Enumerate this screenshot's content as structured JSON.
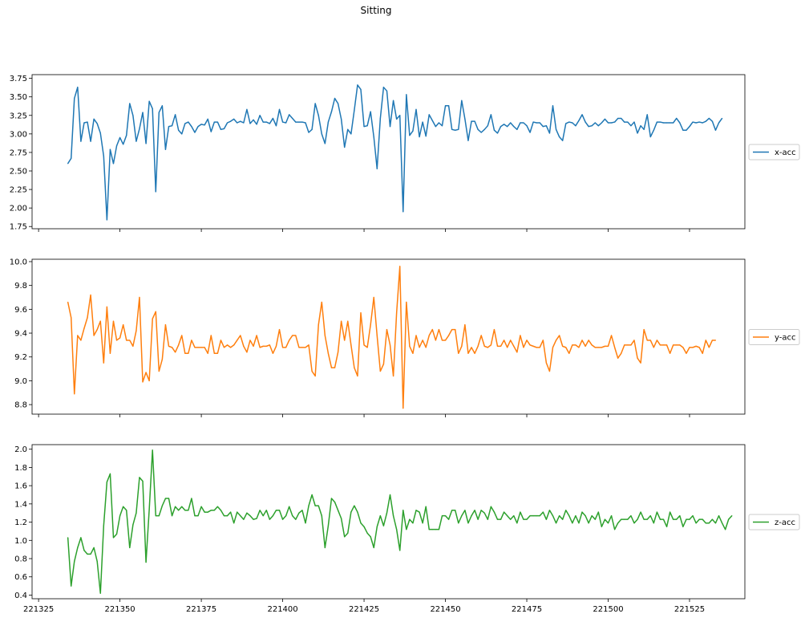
{
  "title": "Sitting",
  "chart_data": [
    {
      "type": "line",
      "title": "",
      "xlabel": "",
      "ylabel": "",
      "series": [
        {
          "name": "x-acc",
          "color": "#1f77b4",
          "x_start": 221334,
          "x_step": 1,
          "values": [
            2.6,
            2.67,
            3.48,
            3.63,
            2.9,
            3.15,
            3.16,
            2.9,
            3.2,
            3.14,
            3.01,
            2.7,
            1.84,
            2.79,
            2.6,
            2.84,
            2.95,
            2.86,
            2.98,
            3.41,
            3.25,
            2.9,
            3.07,
            3.29,
            2.87,
            3.44,
            3.34,
            2.22,
            3.29,
            3.38,
            2.79,
            3.1,
            3.11,
            3.26,
            3.05,
            3.0,
            3.14,
            3.16,
            3.1,
            3.02,
            3.1,
            3.13,
            3.12,
            3.2,
            3.03,
            3.16,
            3.16,
            3.06,
            3.07,
            3.15,
            3.17,
            3.2,
            3.15,
            3.17,
            3.15,
            3.33,
            3.14,
            3.19,
            3.13,
            3.25,
            3.16,
            3.16,
            3.14,
            3.21,
            3.11,
            3.33,
            3.16,
            3.15,
            3.26,
            3.21,
            3.16,
            3.16,
            3.16,
            3.15,
            3.02,
            3.06,
            3.41,
            3.25,
            3.0,
            2.87,
            3.16,
            3.3,
            3.48,
            3.41,
            3.2,
            2.82,
            3.06,
            3.0,
            3.32,
            3.66,
            3.6,
            3.1,
            3.11,
            3.3,
            2.96,
            2.53,
            3.21,
            3.63,
            3.58,
            3.1,
            3.45,
            3.2,
            3.25,
            1.95,
            3.53,
            2.98,
            3.04,
            3.33,
            2.96,
            3.16,
            2.97,
            3.26,
            3.18,
            3.1,
            3.15,
            3.11,
            3.38,
            3.38,
            3.06,
            3.05,
            3.06,
            3.45,
            3.2,
            2.91,
            3.17,
            3.17,
            3.06,
            3.02,
            3.06,
            3.11,
            3.26,
            3.05,
            3.01,
            3.1,
            3.13,
            3.1,
            3.15,
            3.1,
            3.06,
            3.15,
            3.15,
            3.11,
            3.02,
            3.16,
            3.15,
            3.15,
            3.1,
            3.11,
            3.01,
            3.38,
            3.06,
            2.96,
            2.91,
            3.14,
            3.16,
            3.15,
            3.11,
            3.18,
            3.26,
            3.16,
            3.1,
            3.11,
            3.15,
            3.11,
            3.15,
            3.2,
            3.15,
            3.15,
            3.16,
            3.21,
            3.21,
            3.16,
            3.16,
            3.11,
            3.16,
            3.01,
            3.11,
            3.06,
            3.26,
            2.96,
            3.05,
            3.16,
            3.16,
            3.15,
            3.15,
            3.15,
            3.15,
            3.21,
            3.15,
            3.05,
            3.05,
            3.1,
            3.16,
            3.15,
            3.16,
            3.15,
            3.17,
            3.21,
            3.17,
            3.05,
            3.15,
            3.21
          ]
        }
      ],
      "ylim": [
        1.72,
        3.8
      ],
      "yticks": [
        1.75,
        2.0,
        2.25,
        2.5,
        2.75,
        3.0,
        3.25,
        3.5,
        3.75
      ],
      "ytick_labels": [
        "1.75",
        "2.00",
        "2.25",
        "2.50",
        "2.75",
        "3.00",
        "3.25",
        "3.50",
        "3.75"
      ],
      "legend": "right"
    },
    {
      "type": "line",
      "title": "",
      "xlabel": "",
      "ylabel": "",
      "series": [
        {
          "name": "y-acc",
          "color": "#ff7f0e",
          "x_start": 221334,
          "x_step": 1,
          "values": [
            9.66,
            9.53,
            8.89,
            9.38,
            9.34,
            9.44,
            9.53,
            9.72,
            9.38,
            9.43,
            9.5,
            9.15,
            9.62,
            9.23,
            9.5,
            9.34,
            9.36,
            9.47,
            9.34,
            9.34,
            9.29,
            9.42,
            9.7,
            8.99,
            9.07,
            9.0,
            9.52,
            9.58,
            9.08,
            9.18,
            9.47,
            9.29,
            9.28,
            9.24,
            9.3,
            9.38,
            9.23,
            9.23,
            9.34,
            9.28,
            9.28,
            9.28,
            9.28,
            9.23,
            9.38,
            9.23,
            9.23,
            9.34,
            9.28,
            9.3,
            9.28,
            9.3,
            9.34,
            9.38,
            9.29,
            9.24,
            9.34,
            9.29,
            9.38,
            9.28,
            9.29,
            9.29,
            9.3,
            9.23,
            9.29,
            9.43,
            9.28,
            9.28,
            9.34,
            9.38,
            9.38,
            9.28,
            9.28,
            9.28,
            9.3,
            9.08,
            9.04,
            9.47,
            9.66,
            9.38,
            9.23,
            9.11,
            9.11,
            9.24,
            9.5,
            9.34,
            9.5,
            9.3,
            9.11,
            9.04,
            9.57,
            9.3,
            9.28,
            9.47,
            9.7,
            9.38,
            9.08,
            9.14,
            9.43,
            9.3,
            9.04,
            9.57,
            9.96,
            8.77,
            9.66,
            9.29,
            9.23,
            9.38,
            9.28,
            9.34,
            9.28,
            9.38,
            9.43,
            9.34,
            9.43,
            9.34,
            9.34,
            9.38,
            9.43,
            9.43,
            9.23,
            9.29,
            9.47,
            9.23,
            9.28,
            9.23,
            9.29,
            9.38,
            9.29,
            9.28,
            9.3,
            9.43,
            9.29,
            9.29,
            9.34,
            9.28,
            9.34,
            9.29,
            9.24,
            9.38,
            9.28,
            9.34,
            9.3,
            9.29,
            9.28,
            9.28,
            9.34,
            9.15,
            9.08,
            9.28,
            9.34,
            9.38,
            9.29,
            9.28,
            9.23,
            9.3,
            9.3,
            9.28,
            9.34,
            9.29,
            9.34,
            9.3,
            9.28,
            9.28,
            9.28,
            9.29,
            9.29,
            9.38,
            9.28,
            9.19,
            9.23,
            9.3,
            9.3,
            9.3,
            9.34,
            9.19,
            9.15,
            9.43,
            9.34,
            9.34,
            9.28,
            9.34,
            9.3,
            9.3,
            9.3,
            9.23,
            9.3,
            9.3,
            9.3,
            9.28,
            9.23,
            9.28,
            9.28,
            9.29,
            9.28,
            9.23,
            9.34,
            9.28,
            9.34,
            9.34
          ]
        }
      ],
      "ylim": [
        8.72,
        10.02
      ],
      "yticks": [
        8.8,
        9.0,
        9.2,
        9.4,
        9.6,
        9.8,
        10.0
      ],
      "ytick_labels": [
        "8.8",
        "9.0",
        "9.2",
        "9.4",
        "9.6",
        "9.8",
        "10.0"
      ],
      "legend": "right"
    },
    {
      "type": "line",
      "title": "",
      "xlabel": "",
      "ylabel": "",
      "series": [
        {
          "name": "z-acc",
          "color": "#2ca02c",
          "x_start": 221334,
          "x_step": 1,
          "values": [
            1.03,
            0.5,
            0.77,
            0.92,
            1.03,
            0.89,
            0.85,
            0.85,
            0.92,
            0.77,
            0.42,
            1.16,
            1.64,
            1.73,
            1.03,
            1.07,
            1.27,
            1.37,
            1.33,
            0.92,
            1.17,
            1.3,
            1.69,
            1.65,
            0.76,
            1.34,
            1.99,
            1.27,
            1.27,
            1.38,
            1.46,
            1.46,
            1.27,
            1.37,
            1.33,
            1.37,
            1.33,
            1.33,
            1.46,
            1.27,
            1.27,
            1.37,
            1.31,
            1.31,
            1.33,
            1.33,
            1.37,
            1.33,
            1.27,
            1.27,
            1.31,
            1.19,
            1.31,
            1.27,
            1.23,
            1.3,
            1.27,
            1.23,
            1.24,
            1.33,
            1.27,
            1.33,
            1.23,
            1.27,
            1.33,
            1.33,
            1.23,
            1.27,
            1.37,
            1.27,
            1.23,
            1.3,
            1.33,
            1.19,
            1.38,
            1.5,
            1.38,
            1.38,
            1.27,
            0.92,
            1.16,
            1.46,
            1.42,
            1.33,
            1.24,
            1.04,
            1.08,
            1.31,
            1.38,
            1.31,
            1.19,
            1.15,
            1.08,
            1.04,
            0.92,
            1.15,
            1.27,
            1.16,
            1.3,
            1.5,
            1.27,
            1.12,
            0.89,
            1.33,
            1.12,
            1.23,
            1.19,
            1.33,
            1.31,
            1.19,
            1.37,
            1.12,
            1.12,
            1.12,
            1.12,
            1.27,
            1.27,
            1.23,
            1.33,
            1.33,
            1.19,
            1.27,
            1.33,
            1.19,
            1.27,
            1.33,
            1.23,
            1.33,
            1.3,
            1.23,
            1.37,
            1.31,
            1.23,
            1.23,
            1.31,
            1.27,
            1.23,
            1.27,
            1.19,
            1.31,
            1.23,
            1.23,
            1.27,
            1.27,
            1.27,
            1.27,
            1.31,
            1.23,
            1.33,
            1.27,
            1.19,
            1.27,
            1.23,
            1.33,
            1.27,
            1.19,
            1.27,
            1.19,
            1.31,
            1.27,
            1.19,
            1.27,
            1.23,
            1.31,
            1.15,
            1.23,
            1.19,
            1.27,
            1.12,
            1.19,
            1.23,
            1.23,
            1.23,
            1.27,
            1.19,
            1.23,
            1.31,
            1.23,
            1.23,
            1.27,
            1.19,
            1.31,
            1.23,
            1.23,
            1.15,
            1.31,
            1.23,
            1.23,
            1.27,
            1.15,
            1.23,
            1.23,
            1.27,
            1.19,
            1.23,
            1.23,
            1.19,
            1.19,
            1.23,
            1.19,
            1.27,
            1.19,
            1.12,
            1.23,
            1.27
          ]
        }
      ],
      "ylim": [
        0.36,
        2.05
      ],
      "yticks": [
        0.4,
        0.6,
        0.8,
        1.0,
        1.2,
        1.4,
        1.6,
        1.8,
        2.0
      ],
      "ytick_labels": [
        "0.4",
        "0.6",
        "0.8",
        "1.0",
        "1.2",
        "1.4",
        "1.6",
        "1.8",
        "2.0"
      ],
      "legend": "right"
    }
  ],
  "shared_x": {
    "xlim": [
      221323,
      221542
    ],
    "xticks": [
      221325,
      221350,
      221375,
      221400,
      221425,
      221450,
      221475,
      221500,
      221525
    ],
    "xtick_labels": [
      "221325",
      "221350",
      "221375",
      "221400",
      "221425",
      "221450",
      "221475",
      "221500",
      "221525"
    ]
  }
}
